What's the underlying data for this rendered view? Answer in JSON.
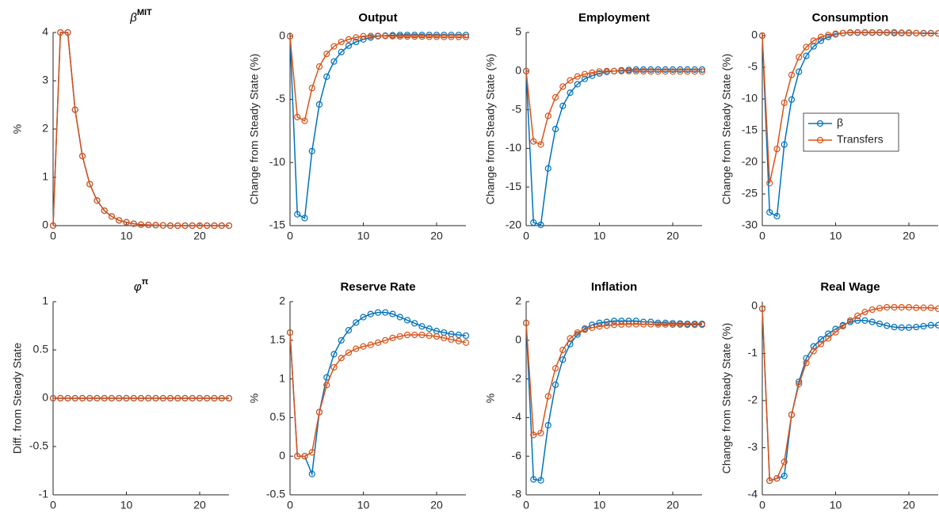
{
  "chart_data": [
    {
      "type": "line",
      "title": "β",
      "title_superscript": "MIT",
      "ylabel": "%",
      "x": [
        0,
        1,
        2,
        3,
        4,
        5,
        6,
        7,
        8,
        9,
        10,
        11,
        12,
        13,
        14,
        15,
        16,
        17,
        18,
        19,
        20,
        21,
        22,
        23,
        24
      ],
      "xlim": [
        0,
        24
      ],
      "xticks": [
        0,
        10,
        20
      ],
      "ylim": [
        0,
        4
      ],
      "yticks": [
        0,
        1,
        2,
        3,
        4
      ],
      "series": [
        {
          "color": "#0072BD",
          "values": [
            0,
            4,
            4,
            2.4,
            1.44,
            0.86,
            0.52,
            0.31,
            0.19,
            0.11,
            0.07,
            0.04,
            0.02,
            0.015,
            0.01,
            0.005,
            0,
            0,
            0,
            0,
            0,
            0,
            0,
            0,
            0
          ]
        },
        {
          "color": "#D95319",
          "values": [
            0,
            4,
            4,
            2.4,
            1.44,
            0.86,
            0.52,
            0.31,
            0.19,
            0.11,
            0.07,
            0.04,
            0.02,
            0.015,
            0.01,
            0.005,
            0,
            0,
            0,
            0,
            0,
            0,
            0,
            0,
            0
          ]
        }
      ]
    },
    {
      "type": "line",
      "title": "Output",
      "ylabel": "Change from Steady State (%)",
      "x": [
        0,
        1,
        2,
        3,
        4,
        5,
        6,
        7,
        8,
        9,
        10,
        11,
        12,
        13,
        14,
        15,
        16,
        17,
        18,
        19,
        20,
        21,
        22,
        23,
        24
      ],
      "xlim": [
        0,
        24
      ],
      "xticks": [
        0,
        10,
        20
      ],
      "ylim": [
        -15,
        0.3
      ],
      "yticks": [
        -15,
        -10,
        -5,
        0
      ],
      "series": [
        {
          "color": "#0072BD",
          "values": [
            0,
            -14.1,
            -14.4,
            -9.1,
            -5.4,
            -3.2,
            -2.0,
            -1.25,
            -0.75,
            -0.45,
            -0.25,
            -0.1,
            0,
            0.05,
            0.08,
            0.1,
            0.1,
            0.1,
            0.1,
            0.1,
            0.1,
            0.1,
            0.1,
            0.1,
            0.1
          ]
        },
        {
          "color": "#D95319",
          "values": [
            0,
            -6.4,
            -6.7,
            -4.1,
            -2.4,
            -1.4,
            -0.8,
            -0.45,
            -0.25,
            -0.1,
            0,
            0.02,
            0.03,
            0.02,
            0,
            -0.01,
            -0.02,
            -0.03,
            -0.03,
            -0.04,
            -0.04,
            -0.05,
            -0.05,
            -0.05,
            -0.05
          ]
        }
      ]
    },
    {
      "type": "line",
      "title": "Employment",
      "ylabel": "Change from Steady State (%)",
      "x": [
        0,
        1,
        2,
        3,
        4,
        5,
        6,
        7,
        8,
        9,
        10,
        11,
        12,
        13,
        14,
        15,
        16,
        17,
        18,
        19,
        20,
        21,
        22,
        23,
        24
      ],
      "xlim": [
        0,
        24
      ],
      "xticks": [
        0,
        10,
        20
      ],
      "ylim": [
        -20,
        5
      ],
      "yticks": [
        -20,
        -15,
        -10,
        -5,
        0,
        5
      ],
      "series": [
        {
          "color": "#0072BD",
          "values": [
            0,
            -19.6,
            -19.9,
            -12.6,
            -7.5,
            -4.5,
            -2.8,
            -1.7,
            -1.0,
            -0.6,
            -0.3,
            -0.1,
            0,
            0.1,
            0.15,
            0.2,
            0.2,
            0.2,
            0.2,
            0.2,
            0.2,
            0.2,
            0.2,
            0.2,
            0.2
          ]
        },
        {
          "color": "#D95319",
          "values": [
            0,
            -9.1,
            -9.5,
            -5.8,
            -3.4,
            -2.0,
            -1.2,
            -0.7,
            -0.4,
            -0.2,
            -0.05,
            0,
            0,
            0,
            0,
            -0.02,
            -0.03,
            -0.04,
            -0.05,
            -0.05,
            -0.05,
            -0.05,
            -0.05,
            -0.05,
            -0.05
          ]
        }
      ]
    },
    {
      "type": "line",
      "title": "Consumption",
      "ylabel": "Change from Steady State (%)",
      "legend": "east",
      "x": [
        0,
        1,
        2,
        3,
        4,
        5,
        6,
        7,
        8,
        9,
        10,
        11,
        12,
        13,
        14,
        15,
        16,
        17,
        18,
        19,
        20,
        21,
        22,
        23,
        24
      ],
      "xlim": [
        0,
        24
      ],
      "xticks": [
        0,
        10,
        20
      ],
      "ylim": [
        -30,
        0.5
      ],
      "yticks": [
        -30,
        -25,
        -20,
        -15,
        -10,
        -5,
        0
      ],
      "series": [
        {
          "name": "β",
          "color": "#0072BD",
          "values": [
            0,
            -27.9,
            -28.5,
            -17.2,
            -10.1,
            -5.7,
            -3.2,
            -1.7,
            -0.8,
            -0.2,
            0.2,
            0.4,
            0.5,
            0.5,
            0.5,
            0.5,
            0.5,
            0.5,
            0.5,
            0.45,
            0.45,
            0.4,
            0.4,
            0.4,
            0.35
          ]
        },
        {
          "name": "Transfers",
          "color": "#D95319",
          "values": [
            0,
            -23.3,
            -17.9,
            -10.6,
            -6.2,
            -3.4,
            -1.8,
            -0.8,
            -0.2,
            0.1,
            0.3,
            0.4,
            0.45,
            0.45,
            0.45,
            0.45,
            0.45,
            0.45,
            0.4,
            0.4,
            0.4,
            0.4,
            0.35,
            0.35,
            0.35
          ]
        }
      ]
    },
    {
      "type": "line",
      "title": "φ",
      "title_superscript": "π",
      "ylabel": "Diff. from Steady State",
      "x": [
        0,
        1,
        2,
        3,
        4,
        5,
        6,
        7,
        8,
        9,
        10,
        11,
        12,
        13,
        14,
        15,
        16,
        17,
        18,
        19,
        20,
        21,
        22,
        23,
        24
      ],
      "xlim": [
        0,
        24
      ],
      "xticks": [
        0,
        10,
        20
      ],
      "ylim": [
        -1,
        1
      ],
      "yticks": [
        -1,
        -0.5,
        0,
        0.5,
        1
      ],
      "series": [
        {
          "color": "#0072BD",
          "values": [
            0,
            0,
            0,
            0,
            0,
            0,
            0,
            0,
            0,
            0,
            0,
            0,
            0,
            0,
            0,
            0,
            0,
            0,
            0,
            0,
            0,
            0,
            0,
            0,
            0
          ]
        },
        {
          "color": "#D95319",
          "values": [
            0,
            0,
            0,
            0,
            0,
            0,
            0,
            0,
            0,
            0,
            0,
            0,
            0,
            0,
            0,
            0,
            0,
            0,
            0,
            0,
            0,
            0,
            0,
            0,
            0
          ]
        }
      ]
    },
    {
      "type": "line",
      "title": "Reserve Rate",
      "ylabel": "%",
      "x": [
        0,
        1,
        2,
        3,
        4,
        5,
        6,
        7,
        8,
        9,
        10,
        11,
        12,
        13,
        14,
        15,
        16,
        17,
        18,
        19,
        20,
        21,
        22,
        23,
        24
      ],
      "xlim": [
        0,
        24
      ],
      "xticks": [
        0,
        10,
        20
      ],
      "ylim": [
        -0.5,
        2
      ],
      "yticks": [
        -0.5,
        0,
        0.5,
        1,
        1.5,
        2
      ],
      "series": [
        {
          "color": "#0072BD",
          "values": [
            1.6,
            0,
            0,
            -0.23,
            0.57,
            1.02,
            1.32,
            1.5,
            1.63,
            1.73,
            1.8,
            1.84,
            1.86,
            1.86,
            1.84,
            1.8,
            1.76,
            1.72,
            1.68,
            1.65,
            1.62,
            1.6,
            1.58,
            1.57,
            1.56
          ]
        },
        {
          "color": "#D95319",
          "values": [
            1.6,
            0,
            0,
            0.05,
            0.57,
            0.92,
            1.15,
            1.27,
            1.34,
            1.39,
            1.42,
            1.44,
            1.47,
            1.5,
            1.53,
            1.55,
            1.57,
            1.57,
            1.57,
            1.56,
            1.55,
            1.53,
            1.51,
            1.49,
            1.47
          ]
        }
      ]
    },
    {
      "type": "line",
      "title": "Inflation",
      "ylabel": "%",
      "x": [
        0,
        1,
        2,
        3,
        4,
        5,
        6,
        7,
        8,
        9,
        10,
        11,
        12,
        13,
        14,
        15,
        16,
        17,
        18,
        19,
        20,
        21,
        22,
        23,
        24
      ],
      "xlim": [
        0,
        24
      ],
      "xticks": [
        0,
        10,
        20
      ],
      "ylim": [
        -8,
        2
      ],
      "yticks": [
        -8,
        -6,
        -4,
        -2,
        0,
        2
      ],
      "series": [
        {
          "color": "#0072BD",
          "values": [
            0.9,
            -7.2,
            -7.25,
            -4.4,
            -2.3,
            -1.0,
            -0.2,
            0.3,
            0.6,
            0.8,
            0.9,
            0.95,
            1.0,
            1.0,
            1.0,
            1.0,
            0.95,
            0.95,
            0.9,
            0.9,
            0.88,
            0.87,
            0.85,
            0.85,
            0.85
          ]
        },
        {
          "color": "#D95319",
          "values": [
            0.9,
            -4.9,
            -4.8,
            -2.9,
            -1.45,
            -0.5,
            0.1,
            0.4,
            0.55,
            0.65,
            0.72,
            0.76,
            0.8,
            0.82,
            0.83,
            0.83,
            0.83,
            0.83,
            0.82,
            0.82,
            0.81,
            0.81,
            0.8,
            0.8,
            0.8
          ]
        }
      ]
    },
    {
      "type": "line",
      "title": "Real Wage",
      "ylabel": "Change from Steady State (%)",
      "x": [
        0,
        1,
        2,
        3,
        4,
        5,
        6,
        7,
        8,
        9,
        10,
        11,
        12,
        13,
        14,
        15,
        16,
        17,
        18,
        19,
        20,
        21,
        22,
        23,
        24
      ],
      "xlim": [
        0,
        24
      ],
      "xticks": [
        0,
        10,
        20
      ],
      "ylim": [
        -4,
        0.1
      ],
      "yticks": [
        -4,
        -3,
        -2,
        -1,
        0
      ],
      "series": [
        {
          "color": "#0072BD",
          "values": [
            -0.05,
            -3.7,
            -3.65,
            -3.6,
            -2.3,
            -1.6,
            -1.1,
            -0.85,
            -0.7,
            -0.58,
            -0.48,
            -0.4,
            -0.33,
            -0.3,
            -0.3,
            -0.33,
            -0.37,
            -0.41,
            -0.44,
            -0.45,
            -0.45,
            -0.44,
            -0.42,
            -0.4,
            -0.4
          ]
        },
        {
          "color": "#D95319",
          "values": [
            -0.05,
            -3.7,
            -3.65,
            -3.3,
            -2.3,
            -1.65,
            -1.2,
            -0.95,
            -0.8,
            -0.68,
            -0.55,
            -0.42,
            -0.3,
            -0.2,
            -0.12,
            -0.07,
            -0.04,
            -0.02,
            -0.02,
            -0.02,
            -0.02,
            -0.03,
            -0.03,
            -0.03,
            -0.05
          ]
        }
      ]
    }
  ]
}
